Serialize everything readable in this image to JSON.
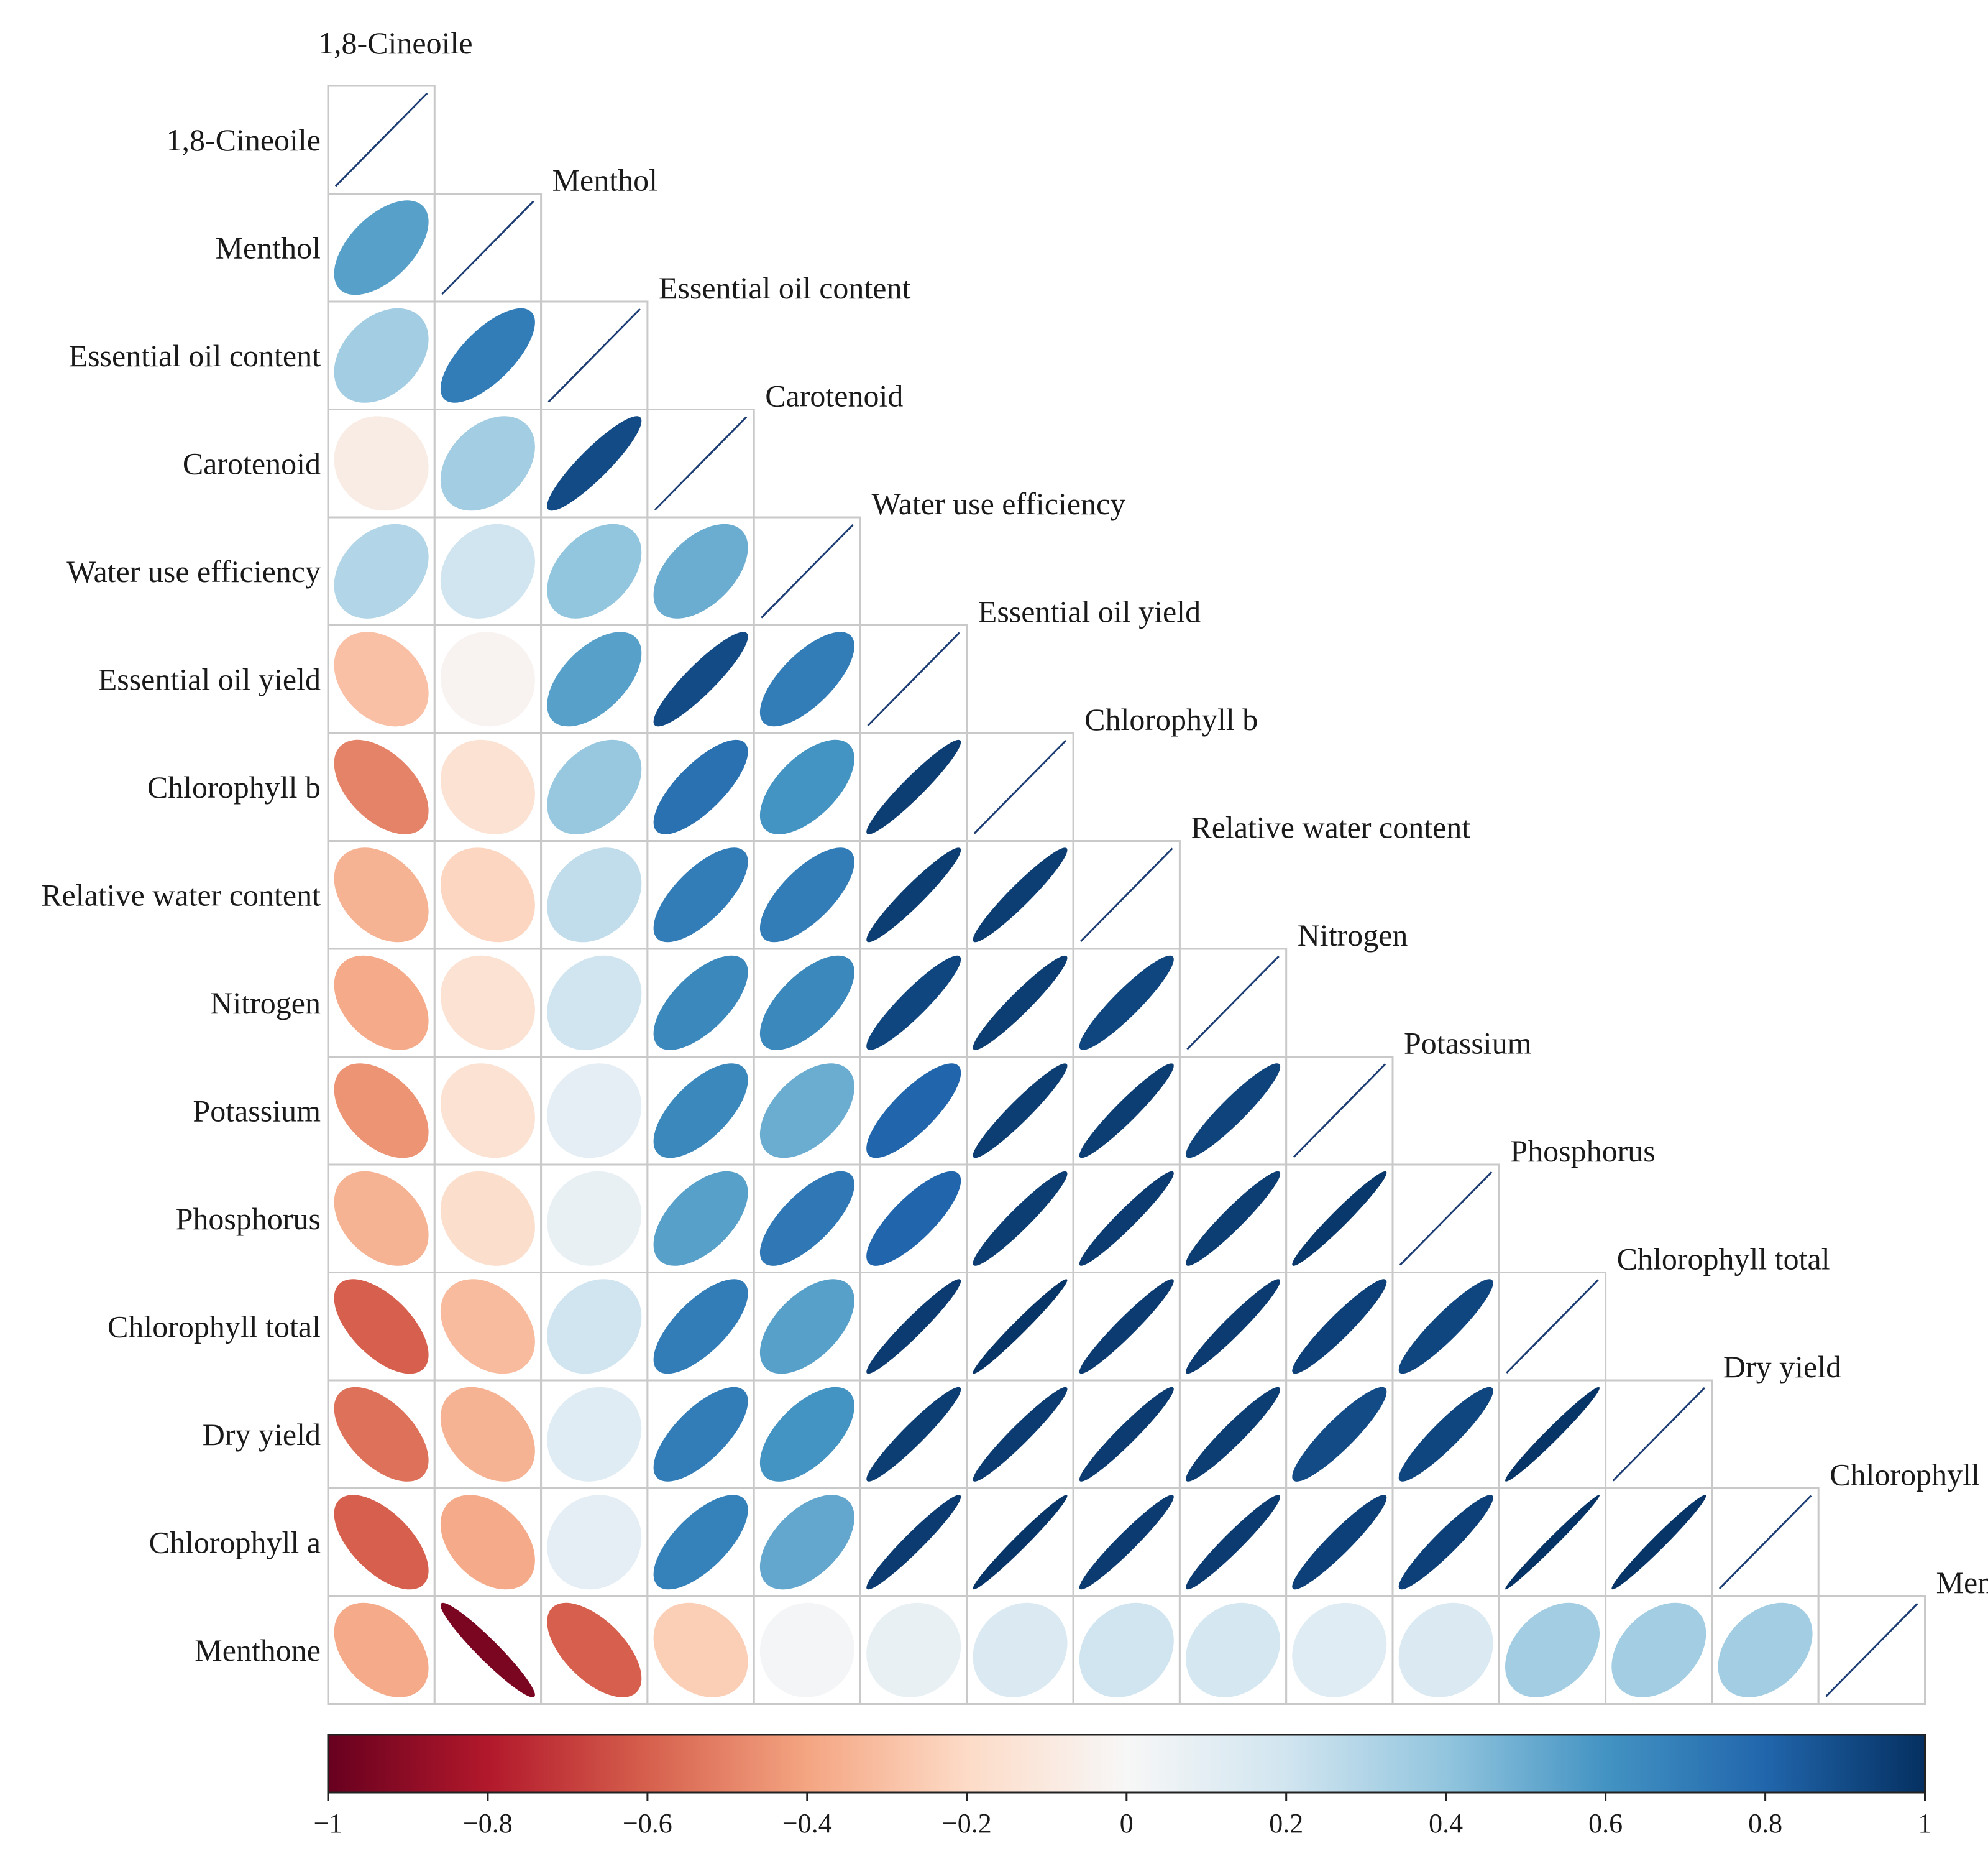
{
  "chart_data": {
    "type": "heatmap",
    "subtype": "correlation-ellipse-lower-triangle",
    "variables": [
      "1,8-Cineoile",
      "Menthol",
      "Essential oil content",
      "Carotenoid",
      "Water use efficiency",
      "Essential oil yield",
      "Chlorophyll b",
      "Relative water content",
      "Nitrogen",
      "Potassium",
      "Phosphorus",
      "Chlorophyll total",
      "Dry yield",
      "Chlorophyll a",
      "Menthone"
    ],
    "correlations": [
      [
        1
      ],
      [
        0.55,
        1
      ],
      [
        0.35,
        0.7,
        1
      ],
      [
        -0.08,
        0.35,
        0.9,
        1
      ],
      [
        0.3,
        0.2,
        0.4,
        0.5,
        1
      ],
      [
        -0.3,
        -0.03,
        0.55,
        0.9,
        0.7,
        1
      ],
      [
        -0.5,
        -0.15,
        0.38,
        0.75,
        0.6,
        0.95,
        1
      ],
      [
        -0.35,
        -0.22,
        0.25,
        0.7,
        0.7,
        0.95,
        0.95,
        1
      ],
      [
        -0.38,
        -0.15,
        0.2,
        0.65,
        0.65,
        0.92,
        0.95,
        0.92,
        1
      ],
      [
        -0.45,
        -0.15,
        0.1,
        0.65,
        0.5,
        0.8,
        0.95,
        0.95,
        0.93,
        1
      ],
      [
        -0.35,
        -0.18,
        0.08,
        0.55,
        0.72,
        0.8,
        0.95,
        0.96,
        0.95,
        0.97,
        1
      ],
      [
        -0.6,
        -0.32,
        0.2,
        0.7,
        0.55,
        0.96,
        0.98,
        0.96,
        0.96,
        0.94,
        0.92,
        1
      ],
      [
        -0.55,
        -0.35,
        0.12,
        0.7,
        0.6,
        0.95,
        0.96,
        0.96,
        0.95,
        0.9,
        0.92,
        0.98,
        1
      ],
      [
        -0.6,
        -0.38,
        0.1,
        0.68,
        0.52,
        0.96,
        0.98,
        0.96,
        0.96,
        0.94,
        0.94,
        0.99,
        0.98,
        1
      ],
      [
        -0.38,
        -0.95,
        -0.6,
        -0.25,
        0.02,
        0.08,
        0.15,
        0.2,
        0.18,
        0.12,
        0.15,
        0.35,
        0.35,
        0.35,
        1
      ]
    ],
    "colorbar": {
      "min": -1,
      "max": 1,
      "ticks": [
        "−1",
        "−0.8",
        "−0.6",
        "−0.4",
        "−0.2",
        "0",
        "0.2",
        "0.4",
        "0.6",
        "0.8",
        "1"
      ],
      "stops": [
        "#67001f",
        "#b2182b",
        "#d6604d",
        "#f4a582",
        "#fddbc7",
        "#f7f7f7",
        "#d1e5f0",
        "#92c5de",
        "#4393c3",
        "#2166ac",
        "#053061"
      ]
    },
    "diagonal_line_color": "#1d3d75",
    "grid_color": "#c9c9c9"
  }
}
